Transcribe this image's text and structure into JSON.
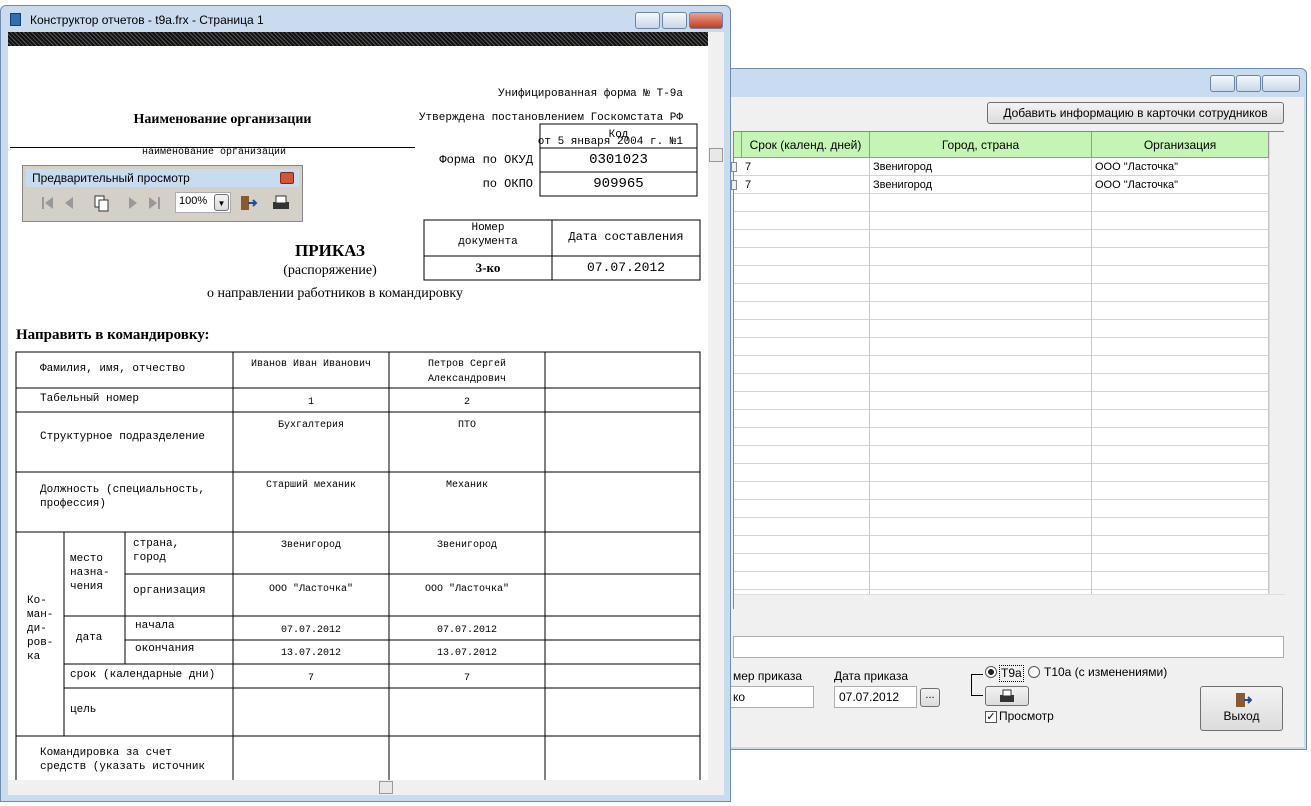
{
  "report_window": {
    "title": "Конструктор отчетов - t9a.frx - Страница 1"
  },
  "preview_toolbar": {
    "title": "Предварительный просмотр",
    "zoom": "100%"
  },
  "form": {
    "header_right": [
      "Унифицированная форма № Т-9а",
      "Утверждена постановлением Госкомстата РФ",
      "от 5 января 2004 г. №1"
    ],
    "org_name": "Наименование организации",
    "org_caption": "наименование организации",
    "codes": {
      "header": "Код",
      "okud_label": "Форма по ОКУД",
      "okud": "0301023",
      "okpo_label": "по ОКПО",
      "okpo": "909965"
    },
    "doc": {
      "number_header": "Номер\nдокумента",
      "date_header": "Дата составления",
      "number": "3-ко",
      "date": "07.07.2012"
    },
    "title": "ПРИКАЗ",
    "subtitle": "(распоряжение)",
    "purpose": "о направлении работников в командировку",
    "section": "Направить в командировку:",
    "table": {
      "fio_label": "Фамилия, имя, отчество",
      "tab_label": "Табельный номер",
      "dept_label": "Структурное подразделение",
      "position_label": "Должность (специальность,\nпрофессия)",
      "trip_label": "Ко-\nман-\nди-\nров-\nка",
      "destination_label": "место\nназна-\nчения",
      "country_label": "страна,\nгород",
      "org_label": "организация",
      "date_label": "дата",
      "start_label": "начала",
      "end_label": "окончания",
      "duration_label": "срок (календарные дни)",
      "goal_label": "цель",
      "funding_label": "Командировка за счет\nсредств (указать источник",
      "employees": [
        {
          "name": "Иванов Иван Иванович",
          "tab_number": 1,
          "dept": "Бухгалтерия",
          "position": "Старший механик",
          "city": "Звенигород",
          "organization": "ООО \"Ласточка\"",
          "start": "07.07.2012",
          "end": "13.07.2012",
          "days": 7
        },
        {
          "name": "Петров Сергей\nАлександрович",
          "tab_number": 2,
          "dept": "ПТО",
          "position": "Механик",
          "city": "Звенигород",
          "organization": "ООО \"Ласточка\"",
          "start": "07.07.2012",
          "end": "13.07.2012",
          "days": 7
        }
      ]
    }
  },
  "employees_window": {
    "add_button": "Добавить информацию в карточки сотрудников",
    "columns": [
      "Срок (календ. дней)",
      "Город, страна",
      "Организация"
    ],
    "rows": [
      {
        "days": 7,
        "city": "Звенигород",
        "organization": "ООО \"Ласточка\""
      },
      {
        "days": 7,
        "city": "Звенигород",
        "organization": "ООО \"Ласточка\""
      }
    ],
    "order_number_label": "мер приказа",
    "order_number": "ко",
    "order_date_label": "Дата приказа",
    "order_date": "07.07.2012",
    "browse_button": "...",
    "radio_t9a": "Т9а",
    "radio_t10a": "Т10а (с изменениями)",
    "preview_checkbox": "Просмотр",
    "exit_button": "Выход"
  }
}
